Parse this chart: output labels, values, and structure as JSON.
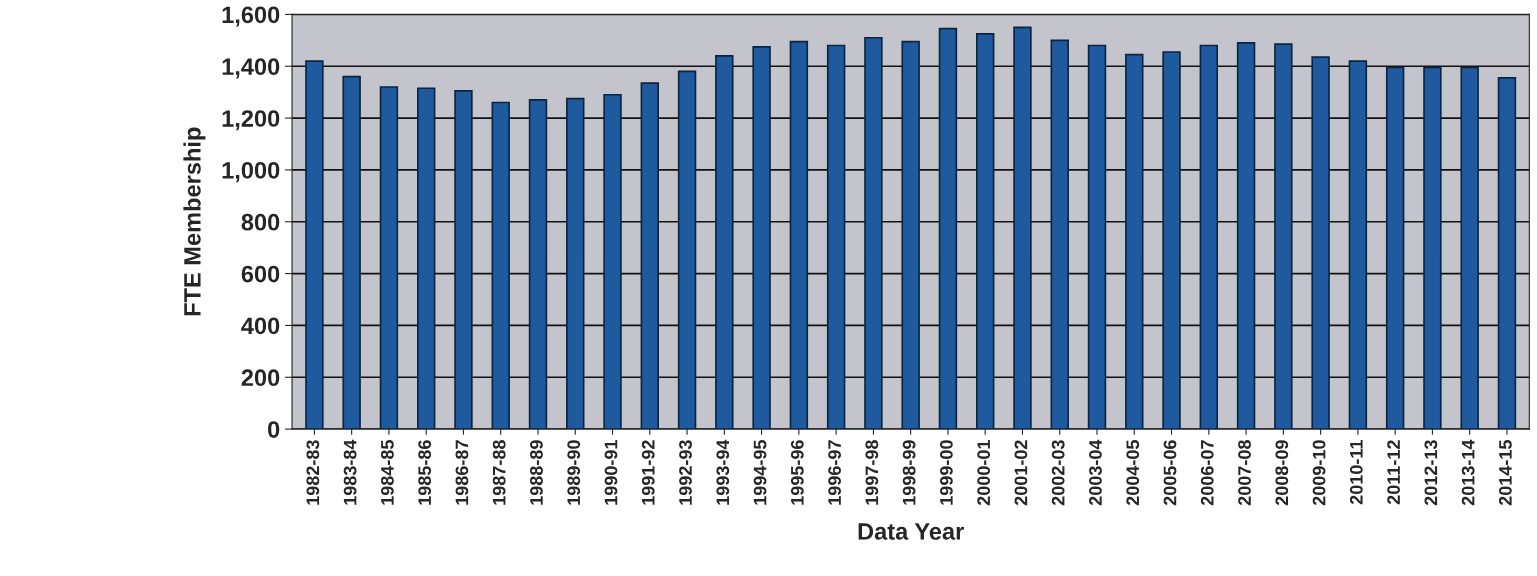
{
  "chart_data": {
    "type": "bar",
    "xlabel": "Data Year",
    "ylabel": "FTE Membership",
    "categories": [
      "1982-83",
      "1983-84",
      "1984-85",
      "1985-86",
      "1986-87",
      "1987-88",
      "1988-89",
      "1989-90",
      "1990-91",
      "1991-92",
      "1992-93",
      "1993-94",
      "1994-95",
      "1995-96",
      "1996-97",
      "1997-98",
      "1998-99",
      "1999-00",
      "2000-01",
      "2001-02",
      "2002-03",
      "2003-04",
      "2004-05",
      "2005-06",
      "2006-07",
      "2007-08",
      "2008-09",
      "2009-10",
      "2010-11",
      "2011-12",
      "2012-13",
      "2013-14",
      "2014-15"
    ],
    "values": [
      1420,
      1360,
      1320,
      1315,
      1305,
      1260,
      1270,
      1275,
      1290,
      1335,
      1380,
      1440,
      1475,
      1495,
      1480,
      1510,
      1495,
      1545,
      1525,
      1550,
      1500,
      1480,
      1445,
      1455,
      1480,
      1490,
      1485,
      1435,
      1420,
      1395,
      1395,
      1395,
      1355
    ],
    "color": "#1f5a9e",
    "ylim": [
      0,
      1600
    ],
    "yticks": [
      {
        "value": 0,
        "label": "0"
      },
      {
        "value": 200,
        "label": "200"
      },
      {
        "value": 400,
        "label": "400"
      },
      {
        "value": 600,
        "label": "600"
      },
      {
        "value": 800,
        "label": "800"
      },
      {
        "value": 1000,
        "label": "1,000"
      },
      {
        "value": 1200,
        "label": "1,200"
      },
      {
        "value": 1400,
        "label": "1,400"
      },
      {
        "value": 1600,
        "label": "1,600"
      }
    ],
    "grid": "y"
  }
}
